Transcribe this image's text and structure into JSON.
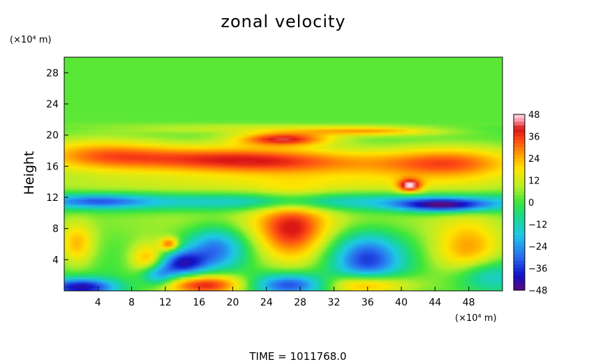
{
  "chart_data": {
    "type": "heatmap",
    "title": "zonal velocity",
    "xlabel": "",
    "ylabel": "Height",
    "x_unit_label": "(×10⁴ m)",
    "y_unit_label": "(×10⁴ m)",
    "xlim": [
      0,
      52
    ],
    "ylim": [
      0,
      30
    ],
    "x_ticks": [
      4,
      8,
      12,
      16,
      20,
      24,
      28,
      32,
      36,
      40,
      44,
      48
    ],
    "y_ticks": [
      4,
      8,
      12,
      16,
      20,
      24,
      28
    ],
    "colorbar": {
      "min": -48,
      "max": 48,
      "ticks": [
        "48",
        "36",
        "24",
        "12",
        "0",
        "−12",
        "−24",
        "−36",
        "−48"
      ],
      "tick_values": [
        48,
        36,
        24,
        12,
        0,
        -12,
        -24,
        -36,
        -48
      ],
      "colors": [
        "#5a0a7a",
        "#1010c8",
        "#2a6af0",
        "#1ec8e8",
        "#19d78c",
        "#3ce63c",
        "#b4ee28",
        "#ffe600",
        "#ffa000",
        "#ff4a14",
        "#d81414",
        "#ff9fb0",
        "#ffe0e8"
      ],
      "color_stops": [
        -48,
        -40,
        -30,
        -18,
        -8,
        0,
        8,
        18,
        26,
        34,
        40,
        45,
        48
      ]
    },
    "grid": false,
    "features": [
      {
        "x": 27,
        "y": 7.5,
        "value": 32,
        "sx": 3,
        "sy": 3
      },
      {
        "x": 26,
        "y": 19.5,
        "value": 38,
        "sx": 4,
        "sy": 0.6
      },
      {
        "x": 20,
        "y": 17,
        "value": 32,
        "sx": 10,
        "sy": 1.2
      },
      {
        "x": 46,
        "y": 16.5,
        "value": 28,
        "sx": 6,
        "sy": 1.5
      },
      {
        "x": 4,
        "y": 17.5,
        "value": 24,
        "sx": 6,
        "sy": 1.5
      },
      {
        "x": 30,
        "y": 16,
        "value": 14,
        "sx": 12,
        "sy": 1.2
      },
      {
        "x": 26,
        "y": 13.5,
        "value": 12,
        "sx": 26,
        "sy": 1.2
      },
      {
        "x": 26,
        "y": 11.5,
        "value": -22,
        "sx": 30,
        "sy": 0.8
      },
      {
        "x": 12.5,
        "y": 6,
        "value": 30,
        "sx": 0.8,
        "sy": 0.6
      },
      {
        "x": 10,
        "y": 4,
        "value": 26,
        "sx": 1.5,
        "sy": 1.5
      },
      {
        "x": 14,
        "y": 3.5,
        "value": -38,
        "sx": 2,
        "sy": 1.2
      },
      {
        "x": 18,
        "y": 5.5,
        "value": -30,
        "sx": 2.5,
        "sy": 2
      },
      {
        "x": 11,
        "y": 2,
        "value": -30,
        "sx": 1.5,
        "sy": 1
      },
      {
        "x": 17,
        "y": 0.8,
        "value": 42,
        "sx": 4,
        "sy": 1
      },
      {
        "x": 27,
        "y": 0.8,
        "value": -42,
        "sx": 4,
        "sy": 1
      },
      {
        "x": 35,
        "y": 0.8,
        "value": 40,
        "sx": 4,
        "sy": 1
      },
      {
        "x": 2,
        "y": 0.5,
        "value": -44,
        "sx": 3,
        "sy": 0.8
      },
      {
        "x": 36,
        "y": 4,
        "value": -36,
        "sx": 3,
        "sy": 2.5
      },
      {
        "x": 48,
        "y": 5,
        "value": 26,
        "sx": 3,
        "sy": 3
      },
      {
        "x": 50,
        "y": 2,
        "value": -24,
        "sx": 3,
        "sy": 1.5
      },
      {
        "x": 1.5,
        "y": 6,
        "value": 22,
        "sx": 1.5,
        "sy": 2
      },
      {
        "x": 45,
        "y": 11,
        "value": -40,
        "sx": 4,
        "sy": 0.6
      },
      {
        "x": 4,
        "y": 11.5,
        "value": -20,
        "sx": 4,
        "sy": 0.6
      },
      {
        "x": 36,
        "y": 20.5,
        "value": 24,
        "sx": 6,
        "sy": 0.4
      },
      {
        "x": 20,
        "y": 20.8,
        "value": 10,
        "sx": 10,
        "sy": 0.4
      },
      {
        "x": 26,
        "y": 9,
        "value": 10,
        "sx": 16,
        "sy": 2
      },
      {
        "x": 41,
        "y": 13.5,
        "value": 36,
        "sx": 1,
        "sy": 0.6
      }
    ]
  },
  "footer": {
    "time_text": "TIME  =  1011768.0"
  }
}
